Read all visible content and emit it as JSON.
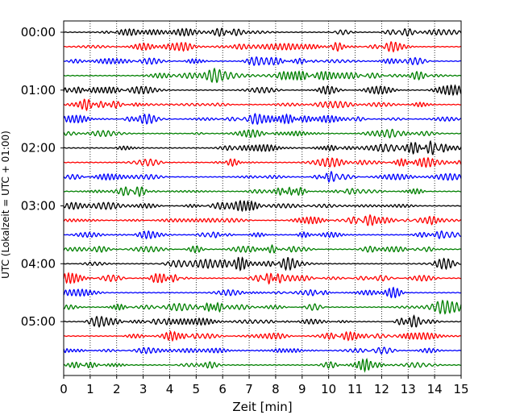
{
  "chart_data": {
    "type": "line",
    "xlabel": "Zeit  [min]",
    "ylabel": "UTC (Lokalzeit = UTC + 01:00)",
    "xlim": [
      0,
      15
    ],
    "x_ticks": [
      "0",
      "1",
      "2",
      "3",
      "4",
      "5",
      "6",
      "7",
      "8",
      "9",
      "10",
      "11",
      "12",
      "13",
      "14",
      "15"
    ],
    "y_ticks": [
      "00:00",
      "01:00",
      "02:00",
      "03:00",
      "04:00",
      "05:00"
    ],
    "grid": "vertical dotted lines at each minute",
    "trace_interval_minutes": 15,
    "trace_count": 24,
    "trace_colors": [
      "#000000",
      "#ff0000",
      "#0000ff",
      "#008000"
    ]
  }
}
